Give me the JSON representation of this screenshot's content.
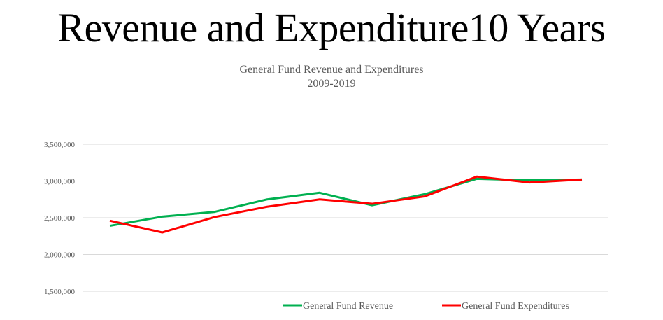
{
  "slide": {
    "title": "Revenue and Expenditure10 Years"
  },
  "chart_data": {
    "type": "line",
    "title": "General Fund Revenue and Expenditures",
    "subtitle": "2009-2019",
    "xlabel": "",
    "ylabel": "",
    "x": [
      1,
      2,
      3,
      4,
      5,
      6,
      7,
      8,
      9,
      10
    ],
    "ylim": [
      1500000,
      3500000
    ],
    "yticks": [
      1500000,
      2000000,
      2500000,
      3000000,
      3500000
    ],
    "ytick_labels": [
      "1,500,000",
      "2,000,000",
      "2,500,000",
      "3,000,000",
      "3,500,000"
    ],
    "grid": true,
    "legend_position": "bottom-right",
    "series": [
      {
        "name": "General Fund Revenue",
        "color": "#00B050",
        "values": [
          2390000,
          2515000,
          2580000,
          2750000,
          2840000,
          2670000,
          2820000,
          3030000,
          3010000,
          3020000
        ]
      },
      {
        "name": "General Fund Expenditures",
        "color": "#FF0000",
        "values": [
          2460000,
          2300000,
          2510000,
          2650000,
          2750000,
          2690000,
          2790000,
          3060000,
          2980000,
          3020000
        ]
      }
    ]
  }
}
